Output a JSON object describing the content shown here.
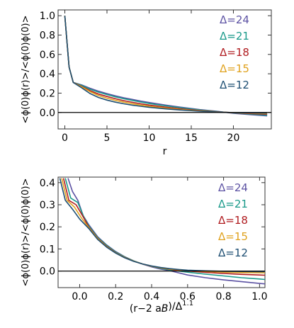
{
  "chart_data": [
    {
      "type": "line",
      "xlabel": "r",
      "ylabel": "<ϕ(0)ϕ(r)>/<ϕ(0)ϕ(0)>",
      "xlim": [
        -0.8,
        24.5
      ],
      "ylim": [
        -0.17,
        1.06
      ],
      "xticks": [
        0,
        5,
        10,
        15,
        20
      ],
      "yticks": [
        0.0,
        0.2,
        0.4,
        0.6,
        0.8,
        1.0
      ],
      "ytick_labels": [
        "0.0",
        "0.2",
        "0.4",
        "0.6",
        "0.8",
        "1.0"
      ],
      "legend_position": "top-right",
      "reference_line_y": 0,
      "series": [
        {
          "name": "Δ=24",
          "color": "#5c52a3",
          "x": [
            0,
            0.5,
            1,
            2,
            3,
            4,
            5,
            6,
            7,
            8,
            9,
            10,
            12,
            14,
            16,
            18,
            20,
            22,
            24
          ],
          "y": [
            1.0,
            0.47,
            0.31,
            0.285,
            0.25,
            0.22,
            0.195,
            0.172,
            0.152,
            0.135,
            0.118,
            0.103,
            0.076,
            0.052,
            0.03,
            0.012,
            -0.008,
            -0.022,
            -0.035
          ]
        },
        {
          "name": "Δ=21",
          "color": "#1a9a8a",
          "x": [
            0,
            0.5,
            1,
            2,
            3,
            4,
            5,
            6,
            7,
            8,
            9,
            10,
            12,
            14,
            16,
            18,
            20,
            22,
            24
          ],
          "y": [
            1.0,
            0.47,
            0.31,
            0.28,
            0.24,
            0.21,
            0.185,
            0.162,
            0.142,
            0.125,
            0.108,
            0.093,
            0.068,
            0.046,
            0.026,
            0.01,
            -0.005,
            -0.017,
            -0.028
          ]
        },
        {
          "name": "Δ=18",
          "color": "#b01c20",
          "x": [
            0,
            0.5,
            1,
            2,
            3,
            4,
            5,
            6,
            7,
            8,
            9,
            10,
            12,
            14,
            16,
            18,
            20,
            22,
            24
          ],
          "y": [
            1.0,
            0.47,
            0.31,
            0.27,
            0.225,
            0.19,
            0.165,
            0.142,
            0.122,
            0.105,
            0.09,
            0.077,
            0.055,
            0.036,
            0.02,
            0.007,
            -0.003,
            -0.011,
            -0.018
          ]
        },
        {
          "name": "Δ=15",
          "color": "#e0a21e",
          "x": [
            0,
            0.5,
            1,
            2,
            3,
            4,
            5,
            6,
            7,
            8,
            9,
            10,
            12,
            14,
            16,
            18,
            20,
            22,
            24
          ],
          "y": [
            1.0,
            0.47,
            0.31,
            0.265,
            0.215,
            0.175,
            0.148,
            0.126,
            0.107,
            0.091,
            0.077,
            0.065,
            0.045,
            0.029,
            0.016,
            0.005,
            -0.002,
            -0.007,
            -0.011
          ]
        },
        {
          "name": "Δ=12",
          "color": "#1d4e72",
          "x": [
            0,
            0.5,
            1,
            2,
            3,
            4,
            5,
            6,
            7,
            8,
            9,
            10,
            12,
            14,
            16,
            18,
            20,
            22,
            24
          ],
          "y": [
            1.0,
            0.47,
            0.31,
            0.255,
            0.195,
            0.155,
            0.128,
            0.107,
            0.09,
            0.076,
            0.064,
            0.054,
            0.037,
            0.024,
            0.013,
            0.004,
            -0.001,
            -0.004,
            -0.006
          ]
        }
      ]
    },
    {
      "type": "line",
      "xlabel": "(r−2 a_B)/Δ^1.1",
      "ylabel": "<ϕ(0)ϕ(r)>/<ϕ(0)ϕ(0)>",
      "xlim": [
        -0.12,
        1.03
      ],
      "ylim": [
        -0.075,
        0.425
      ],
      "xticks": [
        0.0,
        0.2,
        0.4,
        0.6,
        0.8,
        1.0
      ],
      "xtick_labels": [
        "0.0",
        "0.2",
        "0.4",
        "0.6",
        "0.8",
        "1.0"
      ],
      "yticks": [
        0.0,
        0.1,
        0.2,
        0.3,
        0.4
      ],
      "ytick_labels": [
        "0.0",
        "0.1",
        "0.2",
        "0.3",
        "0.4"
      ],
      "legend_position": "bottom-right",
      "reference_line_y": 0,
      "series": [
        {
          "name": "Δ=24",
          "color": "#5c52a3",
          "x": [
            -0.065,
            -0.04,
            -0.01,
            0.02,
            0.05,
            0.1,
            0.15,
            0.2,
            0.25,
            0.3,
            0.35,
            0.4,
            0.45,
            0.5,
            0.55,
            0.6,
            0.7,
            0.8,
            0.9,
            1.0,
            1.03
          ],
          "y": [
            0.42,
            0.36,
            0.32,
            0.25,
            0.21,
            0.155,
            0.118,
            0.088,
            0.065,
            0.046,
            0.031,
            0.019,
            0.009,
            0.002,
            -0.008,
            -0.018,
            -0.03,
            -0.04,
            -0.048,
            -0.056,
            -0.058
          ]
        },
        {
          "name": "Δ=21",
          "color": "#1a9a8a",
          "x": [
            -0.08,
            -0.05,
            -0.01,
            0.02,
            0.05,
            0.1,
            0.15,
            0.2,
            0.25,
            0.3,
            0.35,
            0.4,
            0.45,
            0.5,
            0.55,
            0.6,
            0.7,
            0.8,
            0.9,
            1.0,
            1.03
          ],
          "y": [
            0.42,
            0.33,
            0.31,
            0.25,
            0.205,
            0.152,
            0.116,
            0.086,
            0.064,
            0.046,
            0.032,
            0.021,
            0.012,
            0.005,
            0.0,
            -0.005,
            -0.014,
            -0.022,
            -0.03,
            -0.036,
            -0.038
          ]
        },
        {
          "name": "Δ=18",
          "color": "#b01c20",
          "x": [
            -0.09,
            -0.06,
            -0.02,
            0.02,
            0.05,
            0.1,
            0.15,
            0.2,
            0.25,
            0.3,
            0.35,
            0.4,
            0.45,
            0.5,
            0.55,
            0.6,
            0.7,
            0.8,
            0.9,
            1.0,
            1.03
          ],
          "y": [
            0.42,
            0.32,
            0.3,
            0.245,
            0.2,
            0.148,
            0.112,
            0.083,
            0.062,
            0.045,
            0.032,
            0.022,
            0.014,
            0.008,
            0.003,
            0.0,
            -0.006,
            -0.011,
            -0.015,
            -0.018,
            -0.019
          ]
        },
        {
          "name": "Δ=15",
          "color": "#e0a21e",
          "x": [
            -0.1,
            -0.07,
            -0.03,
            0.01,
            0.05,
            0.1,
            0.15,
            0.2,
            0.25,
            0.3,
            0.35,
            0.4,
            0.45,
            0.5,
            0.55,
            0.6,
            0.7,
            0.8,
            0.9,
            1.0,
            1.03
          ],
          "y": [
            0.42,
            0.32,
            0.29,
            0.24,
            0.197,
            0.146,
            0.11,
            0.082,
            0.061,
            0.045,
            0.032,
            0.022,
            0.015,
            0.009,
            0.005,
            0.002,
            -0.002,
            -0.005,
            -0.007,
            -0.008,
            -0.008
          ]
        },
        {
          "name": "Δ=12",
          "color": "#1d4e72",
          "x": [
            -0.11,
            -0.08,
            -0.04,
            0.0,
            0.05,
            0.1,
            0.15,
            0.2,
            0.25,
            0.3,
            0.35,
            0.4,
            0.45,
            0.5,
            0.55,
            0.6,
            0.7,
            0.8,
            0.9,
            1.0,
            1.03
          ],
          "y": [
            0.42,
            0.32,
            0.28,
            0.235,
            0.193,
            0.143,
            0.108,
            0.081,
            0.06,
            0.044,
            0.032,
            0.023,
            0.016,
            0.011,
            0.007,
            0.004,
            0.001,
            -0.001,
            -0.002,
            -0.003,
            -0.003
          ]
        }
      ]
    }
  ]
}
